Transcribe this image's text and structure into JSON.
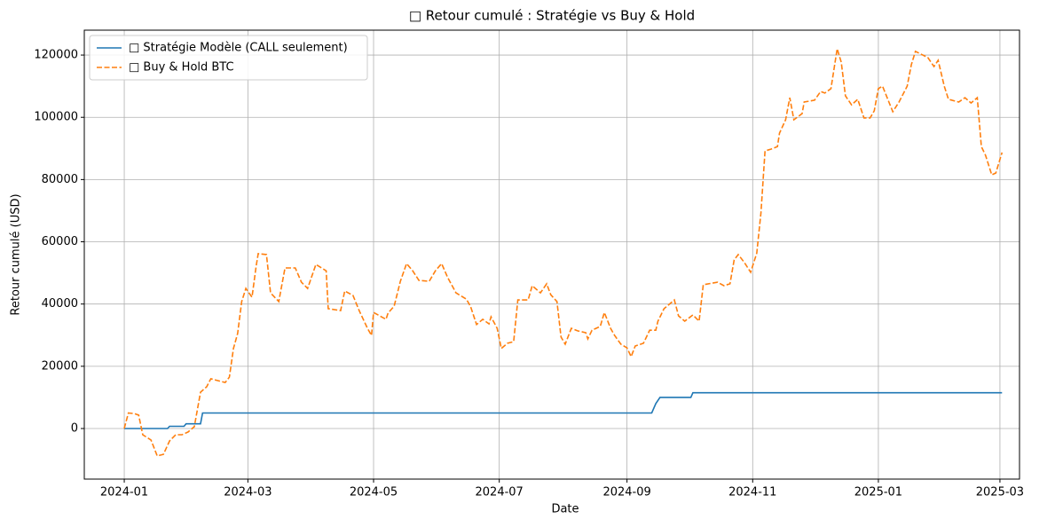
{
  "chart_data": {
    "type": "line",
    "title": "□ Retour cumulé : Stratégie vs Buy & Hold",
    "xlabel": "Date",
    "ylabel": "Retour cumulé (USD)",
    "xlim": [
      -19.4,
      434.5
    ],
    "xticks": [
      {
        "value": 0,
        "label": "2024-01"
      },
      {
        "value": 60,
        "label": "2024-03"
      },
      {
        "value": 121,
        "label": "2024-05"
      },
      {
        "value": 182,
        "label": "2024-07"
      },
      {
        "value": 244,
        "label": "2024-09"
      },
      {
        "value": 305,
        "label": "2024-11"
      },
      {
        "value": 366,
        "label": "2025-01"
      },
      {
        "value": 425,
        "label": "2025-03"
      }
    ],
    "ylim": [
      -16250,
      128000
    ],
    "yticks": [
      0,
      20000,
      40000,
      60000,
      80000,
      100000,
      120000
    ],
    "grid": true,
    "legend": "upper left",
    "series": [
      {
        "name": "□ Stratégie Modèle (CALL seulement)",
        "color": "#1f77b4",
        "dash": false,
        "x": [
          0,
          21,
          22,
          29,
          30,
          37,
          38,
          256,
          258,
          260,
          275,
          276,
          426
        ],
        "values": [
          0,
          0,
          700,
          700,
          1500,
          1500,
          5000,
          5000,
          8000,
          10000,
          10000,
          11500,
          11500
        ]
      },
      {
        "name": "□ Buy & Hold BTC",
        "color": "#ff7f0e",
        "dash": true,
        "x": [
          0,
          2,
          5,
          7,
          9,
          13,
          16,
          19,
          22,
          25,
          28,
          31,
          34,
          37,
          40,
          42,
          47,
          49,
          51,
          53,
          55,
          57,
          59,
          62,
          64,
          65,
          69,
          71,
          75,
          78,
          83,
          86,
          89,
          93,
          98,
          99,
          105,
          107,
          111,
          114,
          118,
          120,
          121,
          127,
          128,
          131,
          134,
          137,
          140,
          143,
          148,
          151,
          154,
          157,
          161,
          166,
          168,
          171,
          174,
          177,
          178,
          181,
          183,
          186,
          189,
          191,
          196,
          198,
          202,
          205,
          207,
          210,
          212,
          214,
          217,
          220,
          224,
          225,
          227,
          231,
          233,
          236,
          238,
          241,
          244,
          246,
          248,
          252,
          255,
          258,
          259,
          262,
          267,
          269,
          272,
          276,
          279,
          281,
          288,
          291,
          294,
          296,
          298,
          301,
          304,
          307,
          309,
          311,
          314,
          317,
          318,
          321,
          323,
          325,
          329,
          330,
          335,
          338,
          340,
          343,
          346,
          348,
          350,
          353,
          356,
          359,
          362,
          364,
          366,
          368,
          373,
          376,
          380,
          382,
          384,
          390,
          393,
          395,
          398,
          400,
          405,
          408,
          411,
          414,
          416,
          418,
          421,
          423,
          426
        ],
        "values": [
          0,
          5000,
          4800,
          4300,
          -2000,
          -3700,
          -8800,
          -8300,
          -4000,
          -2000,
          -2000,
          -1100,
          600,
          11700,
          13400,
          16000,
          15100,
          14800,
          16500,
          25700,
          30500,
          40800,
          45000,
          42200,
          52200,
          56200,
          55900,
          43600,
          40800,
          51600,
          51600,
          47000,
          45000,
          52700,
          50700,
          38500,
          37900,
          44200,
          42800,
          37900,
          32200,
          29900,
          37300,
          35100,
          37100,
          39300,
          47300,
          53000,
          50700,
          47600,
          47300,
          50700,
          53000,
          48500,
          43600,
          41600,
          39300,
          33400,
          35100,
          33600,
          35900,
          32200,
          25700,
          27400,
          27900,
          41300,
          41300,
          45900,
          43600,
          46500,
          43000,
          40800,
          29400,
          27100,
          32200,
          31400,
          30800,
          28800,
          31600,
          32800,
          37300,
          32200,
          29900,
          27100,
          25900,
          23100,
          26500,
          27400,
          31600,
          31600,
          34500,
          38500,
          41300,
          36200,
          34500,
          36500,
          34500,
          46200,
          47000,
          45900,
          46500,
          54200,
          55900,
          53300,
          50200,
          56400,
          69300,
          89200,
          89800,
          90600,
          94900,
          99200,
          106300,
          99200,
          101200,
          104900,
          105500,
          108300,
          107800,
          109200,
          122000,
          117700,
          106900,
          104000,
          105800,
          99800,
          99800,
          102100,
          109200,
          110000,
          101800,
          104900,
          110000,
          116900,
          121200,
          119200,
          116300,
          118300,
          110000,
          105800,
          104900,
          106300,
          104600,
          106300,
          90600,
          87800,
          81500,
          82100,
          88700
        ]
      }
    ]
  }
}
